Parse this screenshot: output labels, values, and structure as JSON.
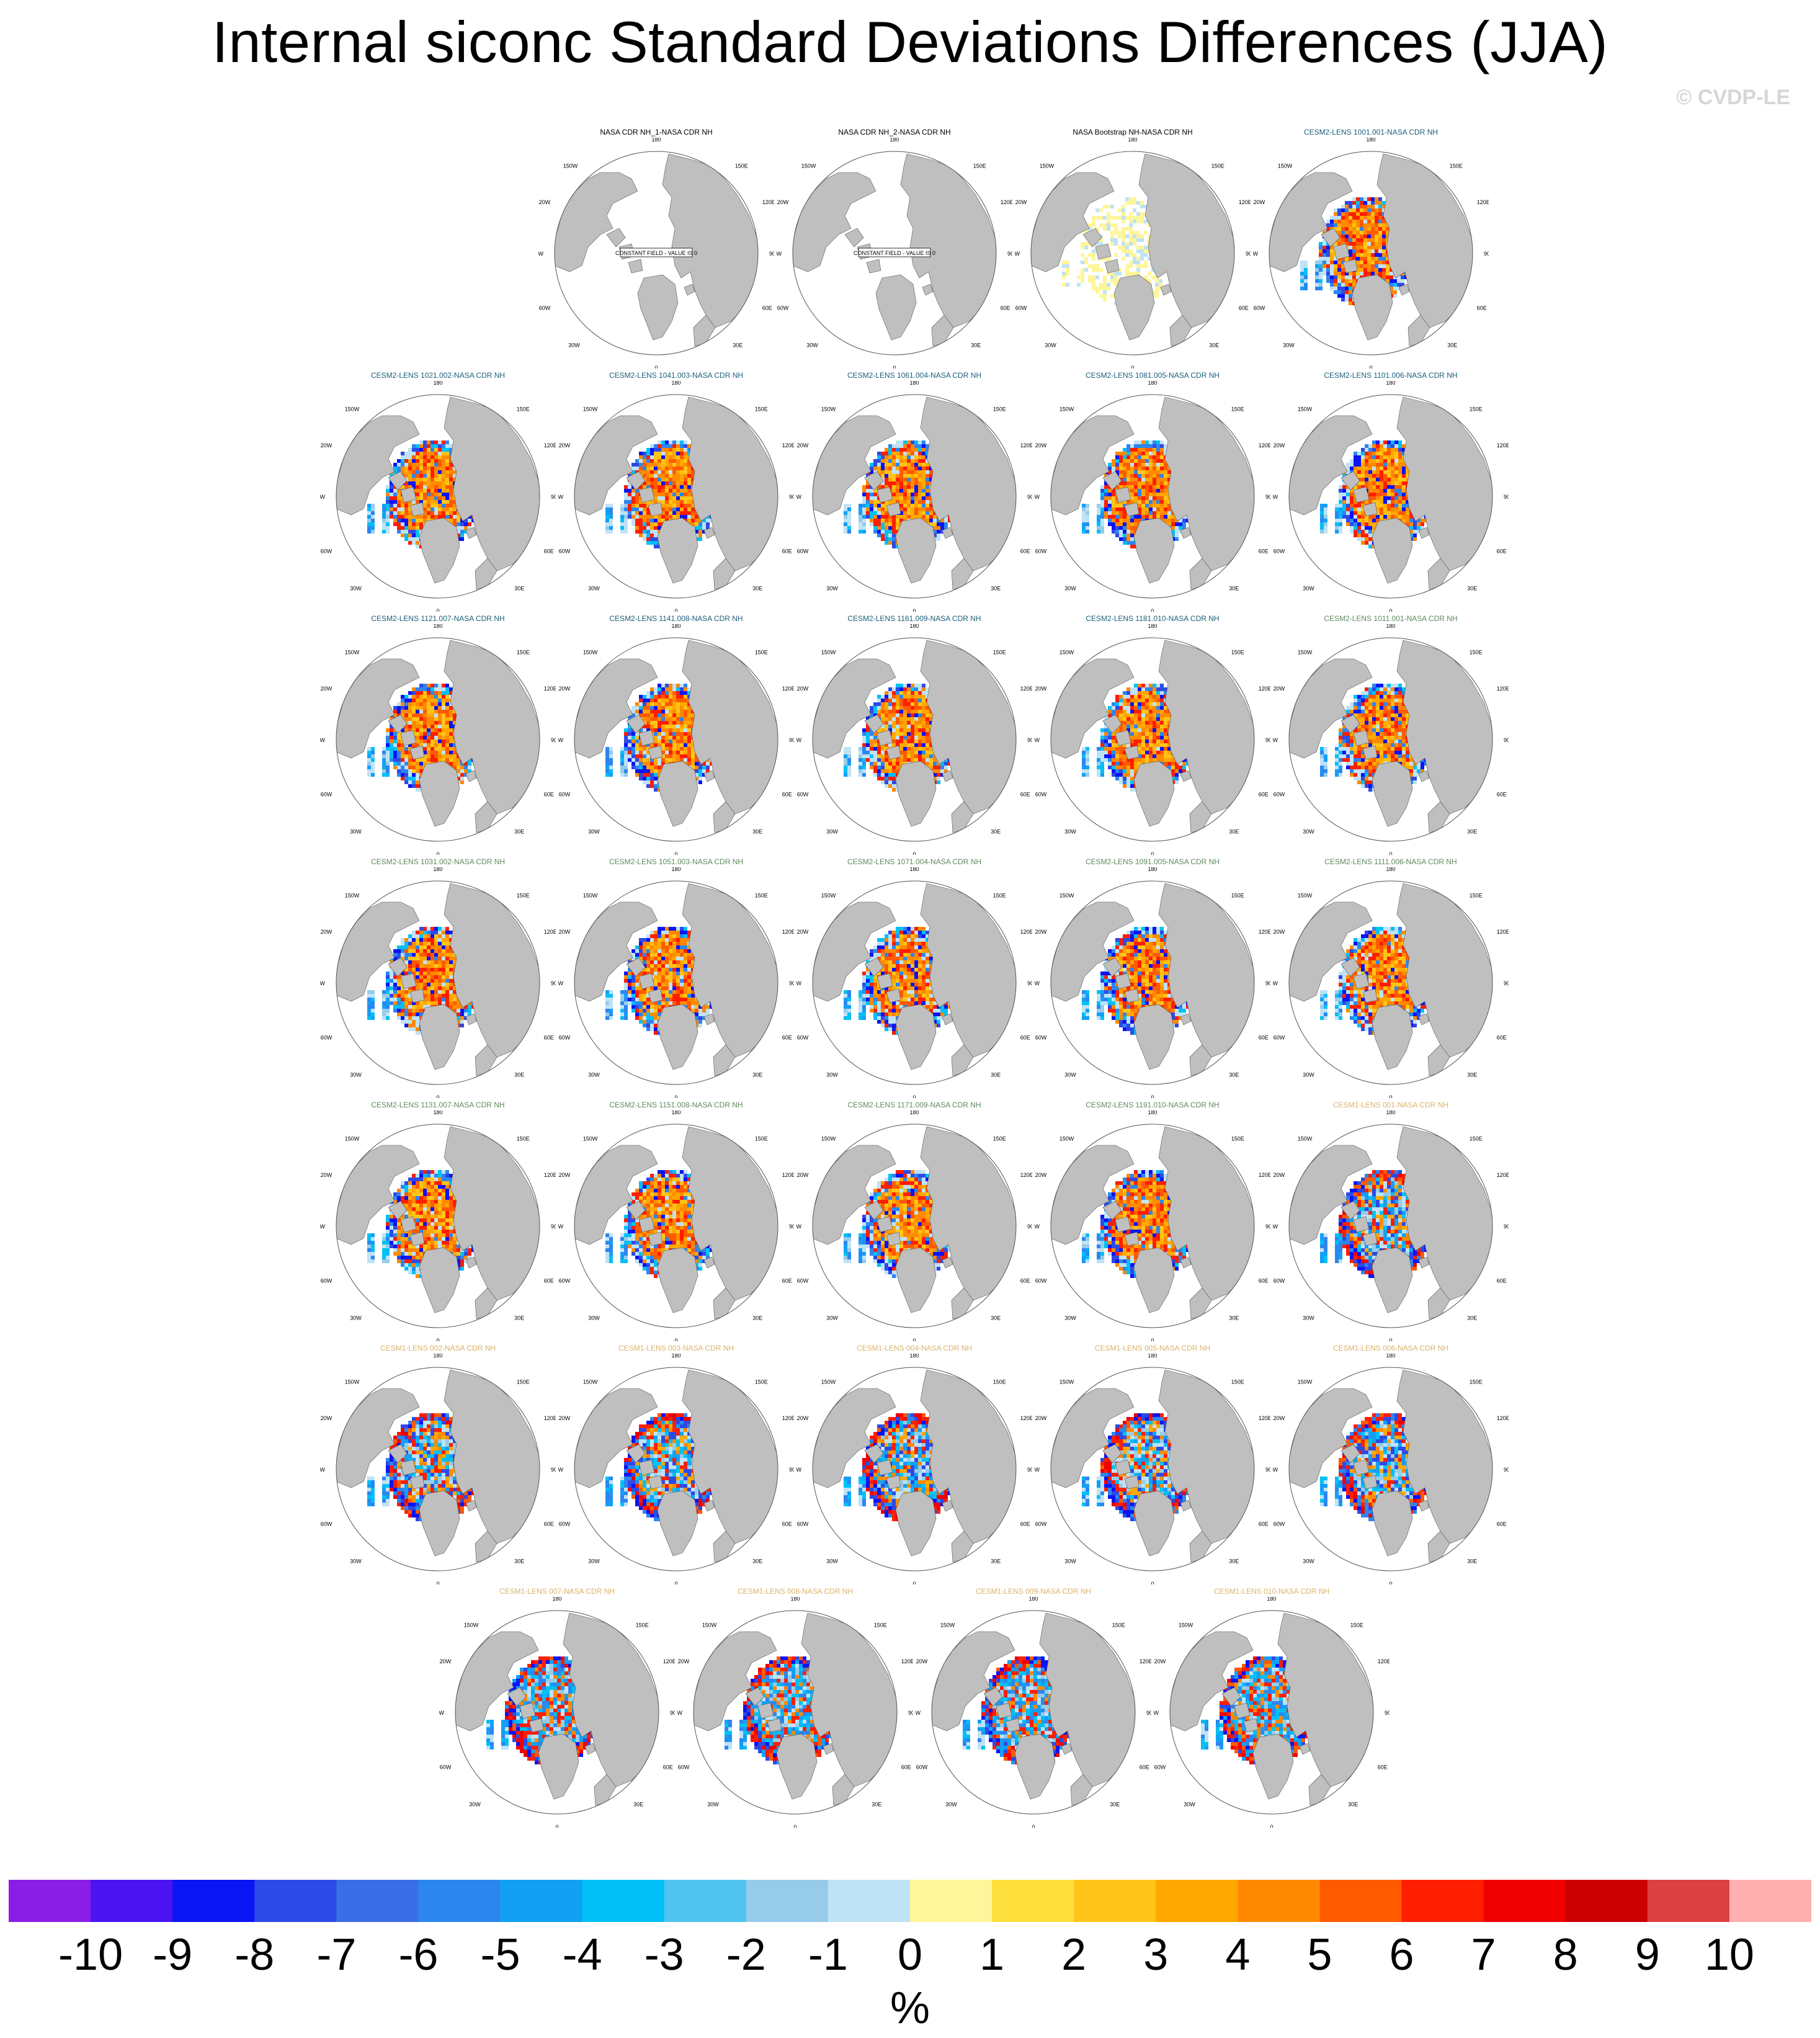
{
  "page": {
    "title": "Internal siconc Standard Deviations Differences (JJA)",
    "copyright": "© CVDP-LE"
  },
  "map_labels": {
    "top": "180",
    "upper_left": "150W",
    "upper_right": "150E",
    "mid_left": "120W",
    "mid_right": "120E",
    "left": "90W",
    "right": "90E",
    "lower_left": "60W",
    "lower_right": "60E",
    "bottom_left": "30W",
    "bottom_right": "30E",
    "bottom": "0"
  },
  "constant_field_label": "CONSTANT FIELD - VALUE IS 0",
  "colors": {
    "land": "#bfbfbf",
    "title_obs": "#000000",
    "title_cesm2_first": "#1a5f7a",
    "title_cesm2_second": "#5e8a5e",
    "title_cesm1": "#d9b36a"
  },
  "chart_data": {
    "type": "heatmap",
    "title": "Internal siconc Standard Deviations Differences (JJA)",
    "units": "%",
    "projection": "north-polar-stereographic",
    "colorbar": {
      "levels": [
        "-10",
        "-9",
        "-8",
        "-7",
        "-6",
        "-5",
        "-4",
        "-3",
        "-2",
        "-1",
        "0",
        "1",
        "2",
        "3",
        "4",
        "5",
        "6",
        "7",
        "8",
        "9",
        "10"
      ],
      "colors": [
        "#8a1ee6",
        "#4a14f0",
        "#0a14f5",
        "#2e4ae6",
        "#3a6ee6",
        "#2c86f0",
        "#12a0f5",
        "#00c0f5",
        "#50c4f0",
        "#96ccea",
        "#bfe2f5",
        "#fff59a",
        "#ffe03c",
        "#ffc418",
        "#ffa800",
        "#ff8a00",
        "#ff5a00",
        "#ff1e00",
        "#f00000",
        "#cc0000",
        "#dc4040",
        "#ffb0b0"
      ]
    },
    "panels": [
      {
        "title": "NASA CDR NH_1-NASA CDR NH",
        "group": "obs",
        "pattern": "constant"
      },
      {
        "title": "NASA CDR NH_2-NASA CDR NH",
        "group": "obs",
        "pattern": "constant"
      },
      {
        "title": "NASA Bootstrap NH-NASA CDR NH",
        "group": "obs",
        "pattern": "weak"
      },
      {
        "title": "CESM2-LENS 1001.001-NASA CDR NH",
        "group": "cesm2_first",
        "pattern": "warm"
      },
      {
        "title": "CESM2-LENS 1021.002-NASA CDR NH",
        "group": "cesm2_first",
        "pattern": "warm"
      },
      {
        "title": "CESM2-LENS 1041.003-NASA CDR NH",
        "group": "cesm2_first",
        "pattern": "warm"
      },
      {
        "title": "CESM2-LENS 1061.004-NASA CDR NH",
        "group": "cesm2_first",
        "pattern": "warm"
      },
      {
        "title": "CESM2-LENS 1081.005-NASA CDR NH",
        "group": "cesm2_first",
        "pattern": "warm"
      },
      {
        "title": "CESM2-LENS 1101.006-NASA CDR NH",
        "group": "cesm2_first",
        "pattern": "warm"
      },
      {
        "title": "CESM2-LENS 1121.007-NASA CDR NH",
        "group": "cesm2_first",
        "pattern": "warm"
      },
      {
        "title": "CESM2-LENS 1141.008-NASA CDR NH",
        "group": "cesm2_first",
        "pattern": "warm"
      },
      {
        "title": "CESM2-LENS 1161.009-NASA CDR NH",
        "group": "cesm2_first",
        "pattern": "warm"
      },
      {
        "title": "CESM2-LENS 1181.010-NASA CDR NH",
        "group": "cesm2_first",
        "pattern": "warm"
      },
      {
        "title": "CESM2-LENS 1011.001-NASA CDR NH",
        "group": "cesm2_second",
        "pattern": "warm"
      },
      {
        "title": "CESM2-LENS 1031.002-NASA CDR NH",
        "group": "cesm2_second",
        "pattern": "warm"
      },
      {
        "title": "CESM2-LENS 1051.003-NASA CDR NH",
        "group": "cesm2_second",
        "pattern": "warm"
      },
      {
        "title": "CESM2-LENS 1071.004-NASA CDR NH",
        "group": "cesm2_second",
        "pattern": "warm"
      },
      {
        "title": "CESM2-LENS 1091.005-NASA CDR NH",
        "group": "cesm2_second",
        "pattern": "warm"
      },
      {
        "title": "CESM2-LENS 1111.006-NASA CDR NH",
        "group": "cesm2_second",
        "pattern": "warm"
      },
      {
        "title": "CESM2-LENS 1131.007-NASA CDR NH",
        "group": "cesm2_second",
        "pattern": "warm"
      },
      {
        "title": "CESM2-LENS 1151.008-NASA CDR NH",
        "group": "cesm2_second",
        "pattern": "warm"
      },
      {
        "title": "CESM2-LENS 1171.009-NASA CDR NH",
        "group": "cesm2_second",
        "pattern": "warm"
      },
      {
        "title": "CESM2-LENS 1191.010-NASA CDR NH",
        "group": "cesm2_second",
        "pattern": "warm"
      },
      {
        "title": "CESM1-LENS 001-NASA CDR NH",
        "group": "cesm1",
        "pattern": "mixed"
      },
      {
        "title": "CESM1-LENS 002-NASA CDR NH",
        "group": "cesm1",
        "pattern": "mixed"
      },
      {
        "title": "CESM1-LENS 003-NASA CDR NH",
        "group": "cesm1",
        "pattern": "mixed"
      },
      {
        "title": "CESM1-LENS 004-NASA CDR NH",
        "group": "cesm1",
        "pattern": "mixed"
      },
      {
        "title": "CESM1-LENS 005-NASA CDR NH",
        "group": "cesm1",
        "pattern": "mixed"
      },
      {
        "title": "CESM1-LENS 006-NASA CDR NH",
        "group": "cesm1",
        "pattern": "mixed"
      },
      {
        "title": "CESM1-LENS 007-NASA CDR NH",
        "group": "cesm1",
        "pattern": "cool"
      },
      {
        "title": "CESM1-LENS 008-NASA CDR NH",
        "group": "cesm1",
        "pattern": "cool"
      },
      {
        "title": "CESM1-LENS 009-NASA CDR NH",
        "group": "cesm1",
        "pattern": "cool"
      },
      {
        "title": "CESM1-LENS 010-NASA CDR NH",
        "group": "cesm1",
        "pattern": "cool"
      }
    ]
  }
}
